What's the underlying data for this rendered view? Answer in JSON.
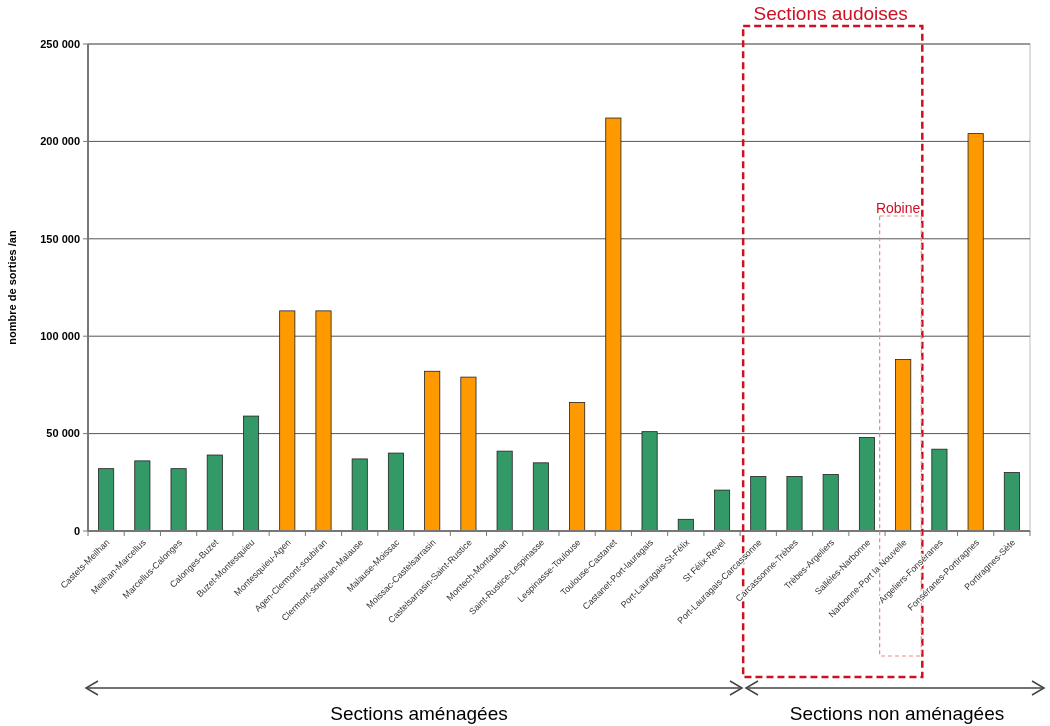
{
  "chart_data": {
    "type": "bar",
    "ylabel": "nombre de sorties /an",
    "categories": [
      "Castets-Meilhan",
      "Meilhan-Marcellus",
      "Marcellus-Calonges",
      "Calonges-Buzet",
      "Buzet-Montesquieu",
      "Montesquieu-Agen",
      "Agen-Clermont-soubiran",
      "Clermont-soubiran-Malause",
      "Malause-Moissac",
      "Moissac-Castelsarrasin",
      "Castelsarrasin-Saint-Rustice",
      "Montech-Montauban",
      "Saint-Rustice-Lespinasse",
      "Lespinasse-Toulouse",
      "Toulouse-Castanet",
      "Castanet-Port-lauragais",
      "Port-Lauragais-St-Félix",
      "St Félix-Revel",
      "Port-Lauragais-Carcassonne",
      "Carcassonne-Trèbes",
      "Trèbes-Argeliers",
      "Sallèles-Narbonne",
      "Narbonne-Port la Nouvelle",
      "Argeliers-Fonséranes",
      "Fonséranes-Portiragnes",
      "Portiragnes-Sète"
    ],
    "values": [
      32000,
      36000,
      32000,
      39000,
      59000,
      113000,
      113000,
      37000,
      40000,
      82000,
      79000,
      41000,
      35000,
      66000,
      212000,
      51000,
      6000,
      21000,
      28000,
      28000,
      29000,
      48000,
      88000,
      42000,
      204000,
      30000
    ],
    "colors": [
      "#339966",
      "#339966",
      "#339966",
      "#339966",
      "#339966",
      "#ff9900",
      "#ff9900",
      "#339966",
      "#339966",
      "#ff9900",
      "#ff9900",
      "#339966",
      "#339966",
      "#ff9900",
      "#ff9900",
      "#339966",
      "#339966",
      "#339966",
      "#339966",
      "#339966",
      "#339966",
      "#339966",
      "#ff9900",
      "#339966",
      "#ff9900",
      "#339966"
    ],
    "ylim": [
      0,
      250000
    ],
    "yticks": [
      0,
      {
        "value": 50000,
        "label": "50 000"
      },
      {
        "value": 100000,
        "label": "100 000"
      },
      {
        "value": 150000,
        "label": "150 000"
      },
      {
        "value": 200000,
        "label": "200 000"
      },
      {
        "value": 250000,
        "label": "250 000"
      }
    ],
    "grid": "y",
    "annotations": [
      "Sections audoises",
      "Robine",
      "Sections aménagées",
      "Sections non aménagées"
    ]
  }
}
